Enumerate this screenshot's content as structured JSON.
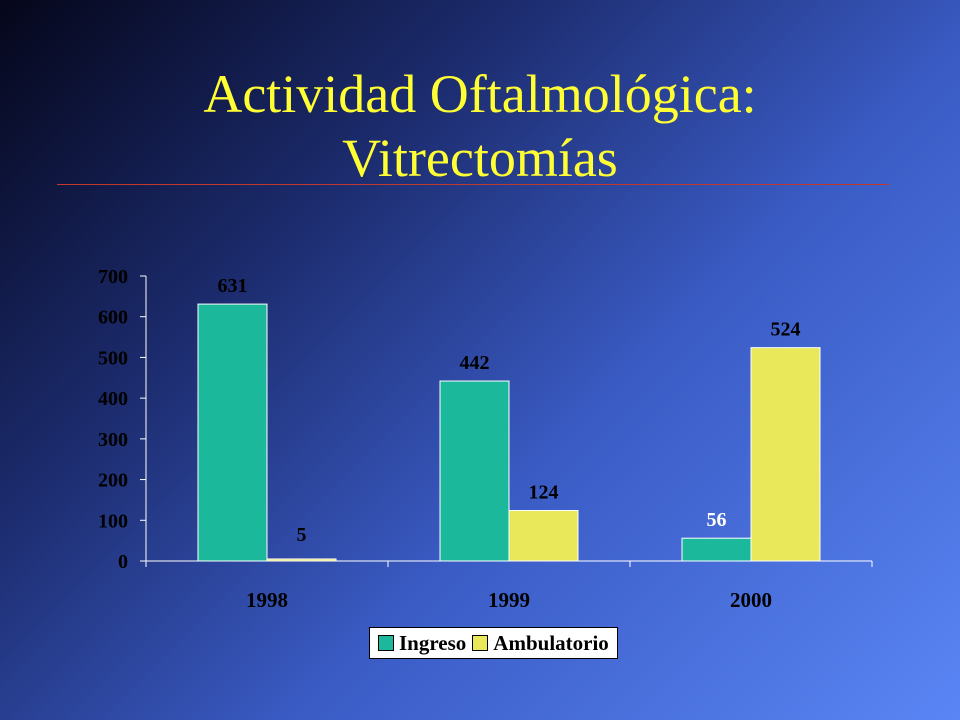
{
  "slide": {
    "title_line1": "Actividad Oftalmológica:",
    "title_line2": "Vitrectomías"
  },
  "chart_data": {
    "type": "bar",
    "categories": [
      "1998",
      "1999",
      "2000"
    ],
    "series": [
      {
        "name": "Ingreso",
        "values": [
          631,
          442,
          56
        ],
        "color": "#1bb89c"
      },
      {
        "name": "Ambulatorio",
        "values": [
          5,
          124,
          524
        ],
        "color": "#e8e85a"
      }
    ],
    "ylim": [
      0,
      700
    ],
    "yticks": [
      0,
      100,
      200,
      300,
      400,
      500,
      600,
      700
    ],
    "data_labels": true,
    "grid": false,
    "legend_position": "bottom-center",
    "title": "",
    "xlabel": "",
    "ylabel": ""
  },
  "colors": {
    "title": "#ffff33",
    "rule": "#c0392b",
    "label_light": "#ffffff",
    "axis": "#ffffff"
  }
}
